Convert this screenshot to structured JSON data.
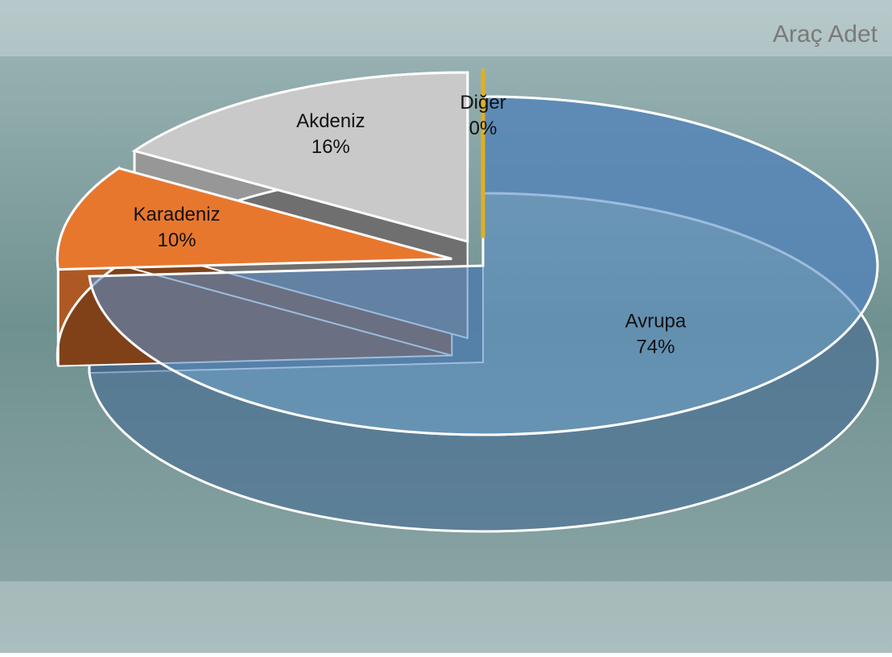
{
  "chart_data": {
    "type": "pie",
    "title": "Araç Adet",
    "categories": [
      "Avrupa",
      "Karadeniz",
      "Akdeniz",
      "Diğer"
    ],
    "values": [
      74,
      10,
      16,
      0
    ],
    "value_labels": [
      "74%",
      "10%",
      "16%",
      "0%"
    ],
    "colors": [
      "#5b8fc7",
      "#e8772e",
      "#c9c9c9",
      "#e0b020"
    ]
  }
}
